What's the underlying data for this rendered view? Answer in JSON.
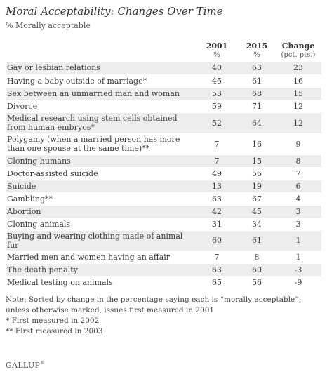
{
  "chart_data": {
    "type": "table",
    "title": "Moral Acceptability: Changes Over Time",
    "subtitle": "% Morally acceptable",
    "columns": [
      {
        "label": "",
        "unit": ""
      },
      {
        "label": "2001",
        "unit": "%"
      },
      {
        "label": "2015",
        "unit": "%"
      },
      {
        "label": "Change",
        "unit": "(pct. pts.)"
      }
    ],
    "rows": [
      {
        "issue": "Gay or lesbian relations",
        "y2001": "40",
        "y2015": "63",
        "change": "23"
      },
      {
        "issue": "Having a baby outside of marriage*",
        "y2001": "45",
        "y2015": "61",
        "change": "16"
      },
      {
        "issue": "Sex between an unmarried man and woman",
        "y2001": "53",
        "y2015": "68",
        "change": "15"
      },
      {
        "issue": "Divorce",
        "y2001": "59",
        "y2015": "71",
        "change": "12"
      },
      {
        "issue": "Medical research using stem cells obtained from human embryos*",
        "y2001": "52",
        "y2015": "64",
        "change": "12"
      },
      {
        "issue": "Polygamy (when a married person has more than one spouse at the same time)**",
        "y2001": "7",
        "y2015": "16",
        "change": "9"
      },
      {
        "issue": "Cloning humans",
        "y2001": "7",
        "y2015": "15",
        "change": "8"
      },
      {
        "issue": "Doctor-assisted suicide",
        "y2001": "49",
        "y2015": "56",
        "change": "7"
      },
      {
        "issue": "Suicide",
        "y2001": "13",
        "y2015": "19",
        "change": "6"
      },
      {
        "issue": "Gambling**",
        "y2001": "63",
        "y2015": "67",
        "change": "4"
      },
      {
        "issue": "Abortion",
        "y2001": "42",
        "y2015": "45",
        "change": "3"
      },
      {
        "issue": "Cloning animals",
        "y2001": "31",
        "y2015": "34",
        "change": "3"
      },
      {
        "issue": "Buying and wearing clothing made of animal fur",
        "y2001": "60",
        "y2015": "61",
        "change": "1"
      },
      {
        "issue": "Married men and women having an affair",
        "y2001": "7",
        "y2015": "8",
        "change": "1"
      },
      {
        "issue": "The death penalty",
        "y2001": "63",
        "y2015": "60",
        "change": "-3"
      },
      {
        "issue": "Medical testing on animals",
        "y2001": "65",
        "y2015": "56",
        "change": "-9"
      }
    ],
    "notes": [
      "Note: Sorted by change in the percentage saying each is “morally acceptable”; unless otherwise marked, issues first measured in 2001",
      "* First measured in 2002",
      "** First measured in 2003"
    ],
    "source": "GALLUP"
  }
}
